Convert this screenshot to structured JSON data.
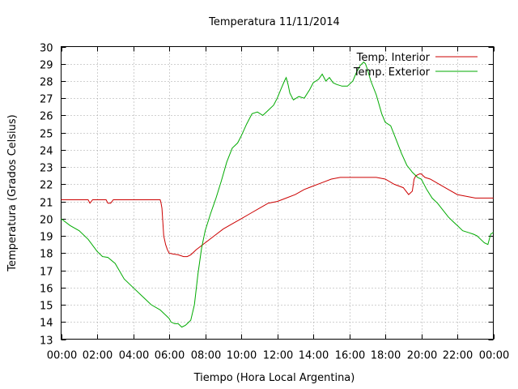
{
  "chart_data": {
    "type": "line",
    "title": "Temperatura 11/11/2014",
    "xlabel": "Tiempo (Hora Local Argentina)",
    "ylabel": "Temperatura (Grados Celsius)",
    "xlim": [
      0,
      24
    ],
    "ylim": [
      13,
      30
    ],
    "x_tick_labels": [
      "00:00",
      "02:00",
      "04:00",
      "06:00",
      "08:00",
      "10:00",
      "12:00",
      "14:00",
      "16:00",
      "18:00",
      "20:00",
      "22:00",
      "00:00"
    ],
    "y_tick_labels": [
      "13",
      "14",
      "15",
      "16",
      "17",
      "18",
      "19",
      "20",
      "21",
      "22",
      "23",
      "24",
      "25",
      "26",
      "27",
      "28",
      "29",
      "30"
    ],
    "grid": true,
    "legend_position": "top-right",
    "series": [
      {
        "name": "Temp. Interior",
        "color": "#cc0000",
        "x": [
          0,
          1.5,
          1.6,
          1.75,
          1.9,
          2.5,
          2.6,
          2.75,
          2.9,
          5.5,
          5.55,
          5.6,
          5.65,
          5.7,
          5.8,
          5.9,
          6.0,
          6.2,
          6.5,
          6.8,
          7.0,
          7.2,
          7.5,
          8.0,
          8.5,
          9.0,
          9.5,
          10.0,
          10.5,
          11.0,
          11.5,
          12.0,
          12.5,
          13.0,
          13.5,
          14.0,
          14.5,
          15.0,
          15.5,
          16.0,
          16.5,
          17.0,
          17.5,
          18.0,
          18.5,
          19.0,
          19.3,
          19.5,
          19.6,
          19.7,
          19.9,
          20.0,
          20.2,
          20.5,
          21.0,
          21.5,
          22.0,
          22.5,
          23.0,
          23.5,
          24.0
        ],
        "y": [
          21.1,
          21.1,
          20.9,
          21.1,
          21.1,
          21.1,
          20.9,
          20.9,
          21.1,
          21.1,
          20.9,
          20.6,
          19.8,
          19.0,
          18.5,
          18.2,
          18.0,
          17.95,
          17.9,
          17.8,
          17.8,
          17.9,
          18.2,
          18.6,
          19.0,
          19.4,
          19.7,
          20.0,
          20.3,
          20.6,
          20.9,
          21.0,
          21.2,
          21.4,
          21.7,
          21.9,
          22.1,
          22.3,
          22.4,
          22.4,
          22.4,
          22.4,
          22.4,
          22.3,
          22.0,
          21.8,
          21.4,
          21.6,
          22.3,
          22.5,
          22.6,
          22.6,
          22.4,
          22.3,
          22.0,
          21.7,
          21.4,
          21.3,
          21.2,
          21.2,
          21.2
        ]
      },
      {
        "name": "Temp. Exterior",
        "color": "#00aa00",
        "x": [
          0,
          0.5,
          1.0,
          1.5,
          2.0,
          2.3,
          2.6,
          3.0,
          3.5,
          4.0,
          4.5,
          5.0,
          5.5,
          5.9,
          6.0,
          6.1,
          6.3,
          6.5,
          6.7,
          6.9,
          7.0,
          7.2,
          7.4,
          7.6,
          7.8,
          8.0,
          8.3,
          8.6,
          8.9,
          9.2,
          9.5,
          9.8,
          10.0,
          10.3,
          10.6,
          10.9,
          11.2,
          11.5,
          11.8,
          12.0,
          12.2,
          12.4,
          12.5,
          12.6,
          12.7,
          12.9,
          13.2,
          13.5,
          13.8,
          14.0,
          14.3,
          14.5,
          14.7,
          14.9,
          15.1,
          15.3,
          15.6,
          15.9,
          16.2,
          16.4,
          16.6,
          16.8,
          16.9,
          17.0,
          17.2,
          17.5,
          17.8,
          18.0,
          18.3,
          18.6,
          18.9,
          19.2,
          19.5,
          19.8,
          20.0,
          20.3,
          20.6,
          20.9,
          21.2,
          21.5,
          21.8,
          22.0,
          22.3,
          22.6,
          22.9,
          23.1,
          23.3,
          23.5,
          23.7,
          23.85,
          24.0
        ],
        "y": [
          20.0,
          19.6,
          19.3,
          18.8,
          18.1,
          17.8,
          17.75,
          17.4,
          16.5,
          16.0,
          15.5,
          15.0,
          14.7,
          14.3,
          14.2,
          14.0,
          13.9,
          13.9,
          13.7,
          13.8,
          13.9,
          14.1,
          15.0,
          16.8,
          18.3,
          19.3,
          20.3,
          21.2,
          22.2,
          23.3,
          24.1,
          24.4,
          24.8,
          25.5,
          26.1,
          26.2,
          26.0,
          26.3,
          26.6,
          27.0,
          27.5,
          28.0,
          28.2,
          27.8,
          27.3,
          26.9,
          27.1,
          27.0,
          27.5,
          27.9,
          28.1,
          28.4,
          28.0,
          28.2,
          27.9,
          27.8,
          27.7,
          27.7,
          28.0,
          28.5,
          28.9,
          29.1,
          29.0,
          28.7,
          28.0,
          27.2,
          26.1,
          25.6,
          25.4,
          24.6,
          23.8,
          23.1,
          22.7,
          22.4,
          22.3,
          21.7,
          21.2,
          20.9,
          20.5,
          20.1,
          19.8,
          19.6,
          19.3,
          19.2,
          19.1,
          19.0,
          18.8,
          18.6,
          18.5,
          19.1,
          19.2
        ]
      }
    ]
  }
}
